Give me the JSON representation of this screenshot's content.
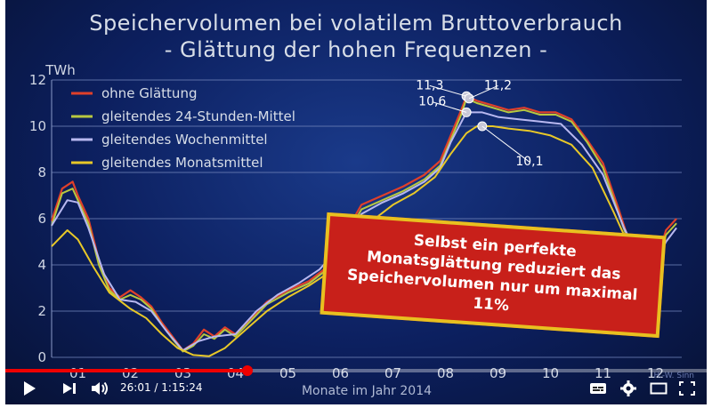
{
  "title": {
    "line1": "Speichervolumen bei volatilem Bruttoverbrauch",
    "line2": "- Glättung der hohen Frequenzen -"
  },
  "chart_data": {
    "type": "line",
    "ylabel": "TWh",
    "xlabel": "Monate im Jahr 2014",
    "ylim": [
      0,
      12
    ],
    "yticks": [
      "0",
      "2",
      "4",
      "6",
      "8",
      "10",
      "12"
    ],
    "xticks": [
      "01",
      "02",
      "03",
      "04",
      "05",
      "06",
      "07",
      "08",
      "09",
      "10",
      "11",
      "12"
    ],
    "xlim": [
      0.5,
      12.5
    ],
    "grid": true,
    "legend_placement": "top-left",
    "series": [
      {
        "name": "ohne Glättung",
        "color": "#e0402a",
        "x": [
          0.5,
          0.7,
          0.9,
          1.0,
          1.2,
          1.4,
          1.6,
          1.8,
          2.0,
          2.2,
          2.4,
          2.6,
          2.8,
          3.0,
          3.2,
          3.4,
          3.6,
          3.8,
          4.0,
          4.3,
          4.6,
          5.0,
          5.4,
          5.8,
          6.1,
          6.4,
          6.8,
          7.2,
          7.6,
          7.9,
          8.1,
          8.3,
          8.4,
          8.6,
          8.9,
          9.2,
          9.5,
          9.8,
          10.1,
          10.4,
          10.7,
          11.0,
          11.3,
          11.5,
          11.8,
          12.0,
          12.2,
          12.4
        ],
        "y": [
          5.9,
          7.3,
          7.6,
          7.0,
          6.0,
          4.2,
          3.0,
          2.6,
          2.9,
          2.6,
          2.2,
          1.5,
          0.9,
          0.3,
          0.6,
          1.2,
          0.9,
          1.3,
          1.0,
          1.7,
          2.4,
          2.9,
          3.3,
          4.0,
          5.4,
          6.6,
          7.0,
          7.4,
          7.9,
          8.5,
          9.6,
          10.7,
          11.3,
          11.1,
          10.9,
          10.7,
          10.8,
          10.6,
          10.6,
          10.3,
          9.4,
          8.4,
          6.4,
          5.0,
          3.8,
          4.0,
          5.5,
          6.0
        ]
      },
      {
        "name": "gleitendes 24-Stunden-Mittel",
        "color": "#b8c840",
        "x": [
          0.5,
          0.7,
          0.9,
          1.0,
          1.2,
          1.4,
          1.6,
          1.8,
          2.0,
          2.2,
          2.4,
          2.6,
          2.8,
          3.0,
          3.2,
          3.4,
          3.6,
          3.8,
          4.0,
          4.3,
          4.6,
          5.0,
          5.4,
          5.8,
          6.1,
          6.4,
          6.8,
          7.2,
          7.6,
          7.9,
          8.1,
          8.3,
          8.4,
          8.6,
          8.9,
          9.2,
          9.5,
          9.8,
          10.1,
          10.4,
          10.7,
          11.0,
          11.3,
          11.5,
          11.8,
          12.0,
          12.2,
          12.4
        ],
        "y": [
          5.7,
          7.1,
          7.3,
          6.8,
          5.8,
          4.0,
          2.9,
          2.5,
          2.7,
          2.5,
          2.1,
          1.4,
          0.8,
          0.25,
          0.5,
          1.0,
          0.8,
          1.2,
          0.9,
          1.6,
          2.3,
          2.8,
          3.2,
          3.9,
          5.2,
          6.4,
          6.8,
          7.2,
          7.7,
          8.3,
          9.4,
          10.5,
          11.2,
          11.0,
          10.8,
          10.6,
          10.7,
          10.5,
          10.5,
          10.2,
          9.3,
          8.2,
          6.2,
          4.9,
          3.7,
          3.9,
          5.3,
          5.8
        ]
      },
      {
        "name": "gleitendes Wochenmittel",
        "color": "#b8b8f0",
        "x": [
          0.5,
          0.8,
          1.0,
          1.2,
          1.5,
          1.8,
          2.1,
          2.4,
          2.7,
          3.0,
          3.3,
          3.6,
          4.0,
          4.4,
          4.8,
          5.2,
          5.6,
          6.0,
          6.4,
          6.8,
          7.2,
          7.6,
          7.9,
          8.1,
          8.4,
          8.7,
          9.0,
          9.4,
          9.8,
          10.2,
          10.6,
          11.0,
          11.4,
          11.7,
          12.0,
          12.2,
          12.4
        ],
        "y": [
          5.7,
          6.8,
          6.7,
          5.6,
          3.6,
          2.5,
          2.4,
          2.0,
          1.1,
          0.3,
          0.7,
          0.9,
          1.0,
          2.0,
          2.7,
          3.2,
          3.8,
          4.8,
          6.2,
          6.7,
          7.1,
          7.6,
          8.2,
          9.3,
          10.6,
          10.6,
          10.4,
          10.3,
          10.2,
          10.1,
          9.2,
          7.9,
          5.6,
          4.3,
          4.1,
          5.0,
          5.6
        ]
      },
      {
        "name": "gleitendes Monatsmittel",
        "color": "#e8c828",
        "x": [
          0.5,
          0.8,
          1.0,
          1.3,
          1.6,
          2.0,
          2.3,
          2.6,
          2.9,
          3.2,
          3.5,
          3.8,
          4.2,
          4.6,
          5.0,
          5.4,
          5.8,
          6.2,
          6.6,
          7.0,
          7.4,
          7.8,
          8.1,
          8.4,
          8.6,
          8.9,
          9.2,
          9.6,
          10.0,
          10.4,
          10.8,
          11.2,
          11.5
        ],
        "y": [
          4.8,
          5.5,
          5.1,
          3.9,
          2.8,
          2.1,
          1.7,
          1.0,
          0.4,
          0.1,
          0.05,
          0.4,
          1.2,
          2.0,
          2.6,
          3.1,
          3.7,
          4.9,
          5.9,
          6.6,
          7.1,
          7.8,
          8.8,
          9.7,
          10.0,
          10.0,
          9.9,
          9.8,
          9.6,
          9.2,
          8.2,
          6.3,
          4.8
        ]
      }
    ],
    "annotations": [
      {
        "text": "11,3",
        "x": 8.4,
        "y": 11.3,
        "label_x": 7.7,
        "label_y": 11.6
      },
      {
        "text": "11,2",
        "x": 8.45,
        "y": 11.2,
        "label_x": 9.0,
        "label_y": 11.6
      },
      {
        "text": "10,6",
        "x": 8.4,
        "y": 10.6,
        "label_x": 7.75,
        "label_y": 10.9
      },
      {
        "text": "10,1",
        "x": 8.7,
        "y": 10.0,
        "label_x": 9.6,
        "label_y": 8.3
      }
    ]
  },
  "callout": {
    "text": "Selbst ein perfekte Monatsglättung reduziert das Speichervolumen nur um maximal 11%"
  },
  "watermark": "H.-W. Sinn",
  "player": {
    "current_time": "26:01",
    "separator": " / ",
    "duration": "1:15:24",
    "progress_fraction": 0.345,
    "icons": {
      "play": "play-icon",
      "next": "next-icon",
      "volume": "volume-icon",
      "subtitles": "subtitles-icon",
      "settings": "gear-icon",
      "theater": "theater-icon",
      "fullscreen": "fullscreen-icon"
    }
  }
}
